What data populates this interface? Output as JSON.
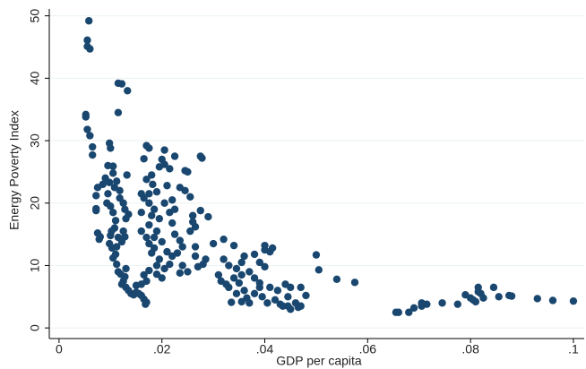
{
  "chart_data": {
    "type": "scatter",
    "xlabel": "GDP per capita",
    "ylabel": "Energy Poverty Index",
    "color": "#1a476f",
    "grid": true,
    "xlim": [
      -0.0019,
      0.1021
    ],
    "ylim": [
      -1.7,
      51.1
    ],
    "xticks": [
      0,
      {
        "value": 0.02,
        "label": ".02"
      },
      {
        "value": 0.04,
        "label": ".04"
      },
      {
        "value": 0.06,
        "label": ".06"
      },
      {
        "value": 0.08,
        "label": ".08"
      },
      {
        "value": 0.1,
        "label": ".1"
      }
    ],
    "yticks": [
      0,
      10,
      20,
      30,
      40,
      50
    ],
    "x": [
      0.0058,
      0.0055,
      0.0055,
      0.006,
      0.0052,
      0.0052,
      0.0055,
      0.006,
      0.0065,
      0.0065,
      0.0115,
      0.0122,
      0.0133,
      0.0115,
      0.0098,
      0.01,
      0.0075,
      0.0072,
      0.0072,
      0.0072,
      0.0075,
      0.008,
      0.0078,
      0.0085,
      0.009,
      0.0095,
      0.0105,
      0.0105,
      0.0098,
      0.0095,
      0.0093,
      0.01,
      0.0105,
      0.011,
      0.0108,
      0.0102,
      0.01,
      0.0098,
      0.0103,
      0.011,
      0.0105,
      0.0112,
      0.0115,
      0.012,
      0.0125,
      0.0122,
      0.013,
      0.0135,
      0.014,
      0.0145,
      0.015,
      0.0155,
      0.016,
      0.0165,
      0.017,
      0.0168,
      0.013,
      0.0128,
      0.0118,
      0.0118,
      0.0125,
      0.0128,
      0.013,
      0.0125,
      0.0128,
      0.0122,
      0.0115,
      0.0112,
      0.0135,
      0.0132,
      0.0112,
      0.0108,
      0.017,
      0.0175,
      0.0165,
      0.02,
      0.0205,
      0.0205,
      0.0215,
      0.0225,
      0.0195,
      0.018,
      0.017,
      0.0182,
      0.019,
      0.0165,
      0.0175,
      0.0185,
      0.018,
      0.0195,
      0.0175,
      0.019,
      0.0185,
      0.0175,
      0.02,
      0.021,
      0.018,
      0.0195,
      0.019,
      0.0175,
      0.0165,
      0.017,
      0.02,
      0.0205,
      0.0215,
      0.022,
      0.023,
      0.024,
      0.025,
      0.0235,
      0.022,
      0.0225,
      0.0235,
      0.0245,
      0.025,
      0.0245,
      0.0255,
      0.026,
      0.026,
      0.0265,
      0.0275,
      0.0255,
      0.0275,
      0.0278,
      0.029,
      0.0265,
      0.0265,
      0.028,
      0.027,
      0.0285,
      0.021,
      0.022,
      0.0205,
      0.0215,
      0.0225,
      0.0235,
      0.024,
      0.016,
      0.017,
      0.016,
      0.016,
      0.0175,
      0.0185,
      0.019,
      0.016,
      0.015,
      0.03,
      0.032,
      0.034,
      0.032,
      0.031,
      0.0315,
      0.0325,
      0.033,
      0.034,
      0.035,
      0.0345,
      0.0355,
      0.036,
      0.0345,
      0.0355,
      0.037,
      0.038,
      0.037,
      0.036,
      0.038,
      0.039,
      0.04,
      0.04,
      0.041,
      0.0415,
      0.039,
      0.038,
      0.04,
      0.039,
      0.0395,
      0.0405,
      0.041,
      0.042,
      0.043,
      0.0425,
      0.044,
      0.045,
      0.0445,
      0.0435,
      0.046,
      0.0465,
      0.045,
      0.047,
      0.047,
      0.048,
      0.0445,
      0.05,
      0.0505,
      0.054,
      0.0575,
      0.0335,
      0.0365,
      0.0355,
      0.033,
      0.066,
      0.0655,
      0.068,
      0.069,
      0.0705,
      0.0715,
      0.0705,
      0.0745,
      0.0775,
      0.079,
      0.08,
      0.0805,
      0.0815,
      0.082,
      0.081,
      0.0825,
      0.0845,
      0.0855,
      0.088,
      0.0875,
      0.093,
      0.096,
      0.1,
      0.0815
    ],
    "values": [
      49.2,
      46.1,
      45.1,
      44.7,
      34.2,
      33.8,
      31.8,
      30.8,
      29,
      27.7,
      39.2,
      39.1,
      38,
      34.5,
      29.6,
      28.8,
      22.5,
      21.2,
      19.1,
      18.8,
      15.2,
      14.6,
      14.2,
      23,
      24,
      26,
      25.9,
      24.8,
      23.3,
      21.5,
      20,
      19.5,
      18.5,
      17.2,
      16,
      15.5,
      14.8,
      13.5,
      12.8,
      11.8,
      11.2,
      10.2,
      9,
      8.6,
      7.5,
      7,
      6.5,
      6,
      5.5,
      5.3,
      5.7,
      5.5,
      5.2,
      4.6,
      4.1,
      3.8,
      9.5,
      8.2,
      22,
      20.8,
      20,
      19,
      17.5,
      15.5,
      14.6,
      13.8,
      14.5,
      13,
      18.2,
      24.5,
      23.5,
      22.5,
      29.2,
      28.8,
      27.1,
      27,
      28.5,
      26.2,
      25.5,
      27.5,
      25.8,
      24.5,
      23.8,
      23,
      21.8,
      20.8,
      20,
      19,
      18,
      17.5,
      16.5,
      15.5,
      14.5,
      13.5,
      13.8,
      12.2,
      12,
      11,
      10,
      9.2,
      8.5,
      7.5,
      8,
      9.5,
      10.2,
      11.5,
      12,
      10,
      9,
      8.8,
      16.8,
      15,
      22.5,
      22,
      25,
      25.2,
      21,
      18,
      17,
      16.2,
      18.8,
      15.5,
      27.5,
      27.2,
      17.8,
      13,
      11.5,
      10.2,
      9.8,
      11,
      22.8,
      20.5,
      20,
      18.5,
      19,
      14,
      13,
      15.5,
      14.5,
      18.5,
      21.5,
      21.5,
      12.8,
      8.6,
      7,
      6.8,
      13.5,
      14.2,
      13.2,
      11,
      8.5,
      7.5,
      7,
      6.5,
      8,
      7.2,
      9.5,
      10.5,
      11.5,
      5.5,
      4.2,
      4,
      8,
      9,
      6,
      5.5,
      7.2,
      12.5,
      13.2,
      12.2,
      12.8,
      10.5,
      11.8,
      9.8,
      6.5,
      5,
      4,
      6.5,
      4.5,
      3.8,
      6,
      7,
      6.5,
      5,
      3.5,
      4,
      3.3,
      3,
      6.5,
      3.5,
      5.2,
      3.5,
      11.7,
      9.3,
      7.8,
      7.3,
      4.1,
      4.8,
      8.5,
      10,
      2.5,
      2.5,
      2.5,
      3.2,
      4,
      3.8,
      3.5,
      4,
      3.8,
      5.3,
      4.8,
      4.5,
      6.5,
      5.5,
      4.2,
      4.8,
      6.5,
      5,
      5.1,
      5.2,
      4.7,
      4.4,
      4.3,
      5.8
    ]
  }
}
